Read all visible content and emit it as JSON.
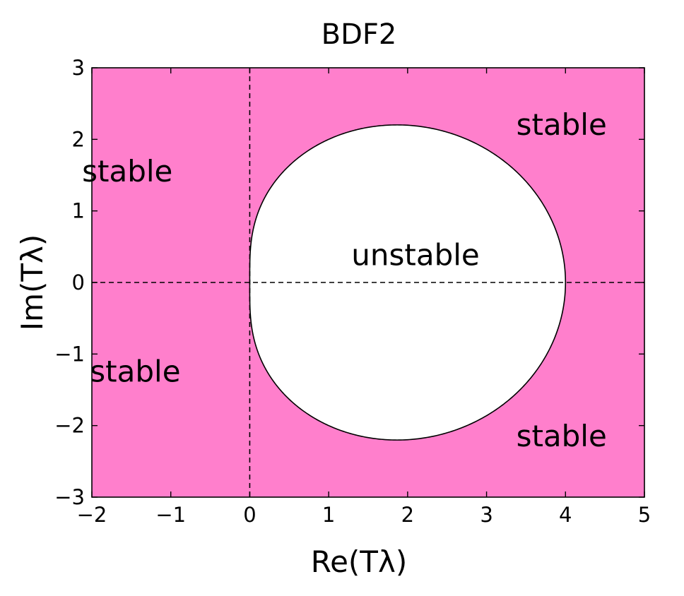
{
  "chart_data": {
    "type": "area",
    "title": "BDF2",
    "xlabel": "Re(Tλ)",
    "ylabel": "Im(Tλ)",
    "xlim": [
      -2,
      5
    ],
    "ylim": [
      -3,
      3
    ],
    "xticks": [
      "−2",
      "−1",
      "0",
      "1",
      "2",
      "3",
      "4",
      "5"
    ],
    "yticks": [
      "−3",
      "−2",
      "−1",
      "0",
      "1",
      "2",
      "3"
    ],
    "grid": false,
    "legend": "none",
    "regions": [
      {
        "label": "stable",
        "x": -1.55,
        "y": 1.55
      },
      {
        "label": "stable",
        "x": 3.95,
        "y": 2.2
      },
      {
        "label": "unstable",
        "x": 2.1,
        "y": 0.38
      },
      {
        "label": "stable",
        "x": -1.45,
        "y": -1.25
      },
      {
        "label": "stable",
        "x": 3.95,
        "y": -2.15
      }
    ],
    "boundary": {
      "description": "stability boundary z = 3/2 - 2/ξ + 1/(2ξ²), ξ = e^{iθ}",
      "re_range": [
        0,
        4
      ],
      "im_range": [
        -2.2,
        2.2
      ]
    },
    "reference_lines": [
      {
        "orientation": "vertical",
        "value": 0,
        "style": "dashed"
      },
      {
        "orientation": "horizontal",
        "value": 0,
        "style": "dashed"
      }
    ],
    "colors": {
      "stable_fill": "#ff7fcc",
      "unstable_fill": "#ffffff",
      "boundary": "#000000",
      "reference": "#000000"
    }
  }
}
